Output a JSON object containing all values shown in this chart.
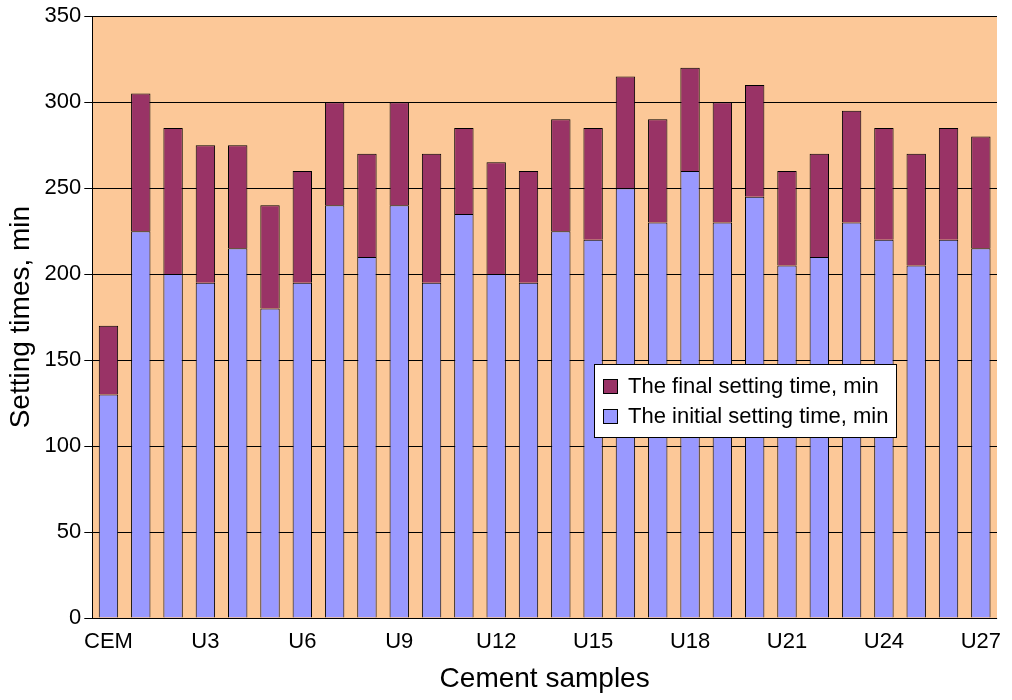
{
  "chart_data": {
    "type": "bar",
    "stacked": true,
    "xlabel": "Cement samples",
    "ylabel": "Setting times, min",
    "categories": [
      "CEM",
      null,
      null,
      "U3",
      null,
      null,
      "U6",
      null,
      null,
      "U9",
      null,
      null,
      "U12",
      null,
      null,
      "U15",
      null,
      null,
      "U18",
      null,
      null,
      "U21",
      null,
      null,
      "U24",
      null,
      null,
      "U27"
    ],
    "series": [
      {
        "name": "The initial setting time, min",
        "color": "#9999ff",
        "values": [
          130,
          225,
          200,
          195,
          215,
          180,
          195,
          240,
          210,
          240,
          195,
          235,
          200,
          195,
          225,
          220,
          250,
          230,
          260,
          230,
          245,
          205,
          210,
          230,
          220,
          205,
          220,
          215
        ]
      },
      {
        "name": "The final setting time, min",
        "color": "#993366",
        "values": [
          40,
          80,
          85,
          80,
          60,
          60,
          65,
          60,
          60,
          60,
          75,
          50,
          65,
          65,
          65,
          65,
          65,
          60,
          60,
          70,
          65,
          55,
          60,
          65,
          65,
          65,
          65,
          65
        ]
      }
    ],
    "ylim": [
      0,
      350
    ],
    "yticks": [
      0,
      50,
      100,
      150,
      200,
      250,
      300,
      350
    ],
    "grid": "y",
    "legend": "right"
  }
}
